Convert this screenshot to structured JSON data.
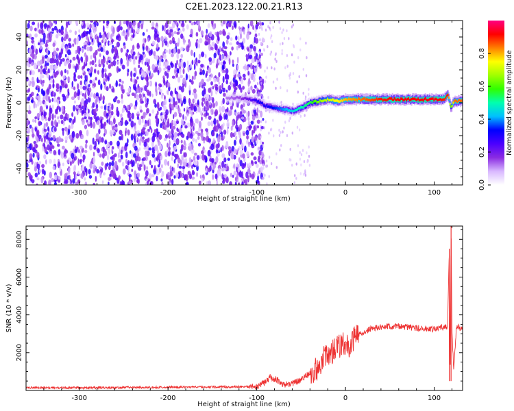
{
  "title": "C2E1.2023.122.00.21.R13",
  "chart_data": [
    {
      "type": "heatmap",
      "xlabel": "Height of straight line (km)",
      "ylabel": "Frequency (Hz)",
      "xlim": [
        -360,
        132
      ],
      "ylim": [
        -50,
        50
      ],
      "x_ticks": [
        -300,
        -200,
        -100,
        0,
        100
      ],
      "y_ticks": [
        -40,
        -20,
        0,
        20,
        40
      ],
      "colorbar": {
        "label": "Normalized spectral amplitude",
        "range": [
          0,
          1
        ],
        "ticks": [
          0.0,
          0.2,
          0.4,
          0.6,
          0.8
        ],
        "tick_labels": [
          "0.0",
          "0.2",
          "0.4",
          "0.6",
          "0.8"
        ],
        "colormap": [
          "#ffffff",
          "#d8b8ff",
          "#8a2be2",
          "#4b00ff",
          "#0000ff",
          "#00c0ff",
          "#00ffb0",
          "#30ff00",
          "#a0ff00",
          "#ffff00",
          "#ff8000",
          "#ff0000",
          "#ff0080"
        ]
      },
      "noise_region_x": [
        -360,
        -100
      ],
      "ridge": {
        "x": [
          -135,
          -120,
          -110,
          -100,
          -90,
          -80,
          -70,
          -60,
          -50,
          -40,
          -30,
          -20,
          -10,
          0,
          20,
          40,
          60,
          80,
          100,
          110,
          115,
          118,
          122,
          132
        ],
        "frequency": [
          3,
          3,
          2,
          1,
          -2,
          -3,
          -4,
          -5,
          -3,
          0,
          1,
          2,
          1,
          2,
          2,
          2,
          2,
          2,
          2,
          2,
          5,
          -3,
          1,
          1
        ],
        "amplitude": [
          0.12,
          0.15,
          0.2,
          0.3,
          0.3,
          0.35,
          0.4,
          0.45,
          0.5,
          0.55,
          0.65,
          0.7,
          0.75,
          0.8,
          0.85,
          0.9,
          0.92,
          0.92,
          0.93,
          0.9,
          0.9,
          0.6,
          0.85,
          0.85
        ]
      }
    },
    {
      "type": "line",
      "xlabel": "Height of straight line (km)",
      "ylabel": "SNR (10 * v/v)",
      "xlim": [
        -360,
        132
      ],
      "ylim": [
        0,
        8700
      ],
      "x_ticks": [
        -300,
        -200,
        -100,
        0,
        100
      ],
      "y_ticks": [
        2000,
        4000,
        6000,
        8000
      ],
      "series": [
        {
          "color": "#ee3333",
          "x": [
            -360,
            -300,
            -250,
            -200,
            -150,
            -110,
            -100,
            -95,
            -90,
            -85,
            -75,
            -70,
            -60,
            -50,
            -40,
            -35,
            -30,
            -25,
            -20,
            -15,
            -10,
            -5,
            0,
            5,
            10,
            15,
            20,
            30,
            40,
            60,
            80,
            100,
            110,
            115,
            117,
            118,
            119,
            120,
            122,
            125,
            132
          ],
          "y": [
            150,
            140,
            160,
            170,
            180,
            200,
            210,
            300,
            450,
            700,
            500,
            300,
            350,
            550,
            900,
            1100,
            1200,
            1700,
            1900,
            2000,
            2300,
            2400,
            2500,
            2350,
            2800,
            3000,
            3100,
            3300,
            3350,
            3400,
            3300,
            3250,
            3350,
            3300,
            7500,
            500,
            8700,
            3300,
            1000,
            3400,
            3250
          ]
        }
      ],
      "spikes": [
        {
          "x": 117,
          "y": 7500
        },
        {
          "x": 119,
          "y": 8700
        }
      ]
    }
  ]
}
